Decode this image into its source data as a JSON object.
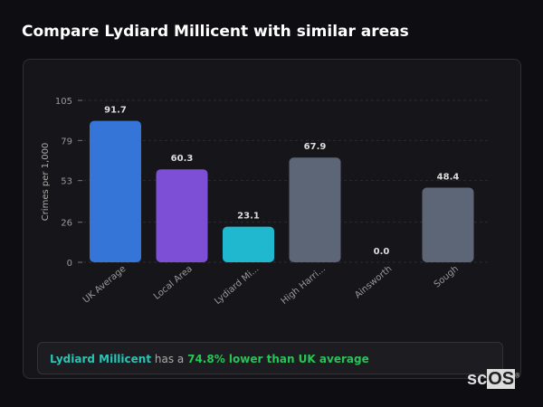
{
  "title": "Compare Lydiard Millicent with similar areas",
  "chart_data": {
    "type": "bar",
    "title": "",
    "xlabel": "",
    "ylabel": "Crimes per 1,000",
    "ylim": [
      0,
      105
    ],
    "yticks": [
      0,
      26,
      53,
      79,
      105
    ],
    "grid": true,
    "categories": [
      "UK Average",
      "Local Area",
      "Lydiard Mi...",
      "High Harri...",
      "Ainsworth",
      "Sough"
    ],
    "values": [
      91.7,
      60.3,
      23.1,
      67.9,
      0.0,
      48.4
    ],
    "data_labels": [
      "91.7",
      "60.3",
      "23.1",
      "67.9",
      "0.0",
      "48.4"
    ],
    "colors": [
      "#3575d8",
      "#7c4fd6",
      "#1fb8cf",
      "#5d6677",
      "#5d6677",
      "#5d6677"
    ]
  },
  "summary": {
    "area": "Lydiard Millicent",
    "mid": " has a ",
    "result": "74.8% lower than UK average"
  },
  "logo": {
    "text": "scOS"
  }
}
